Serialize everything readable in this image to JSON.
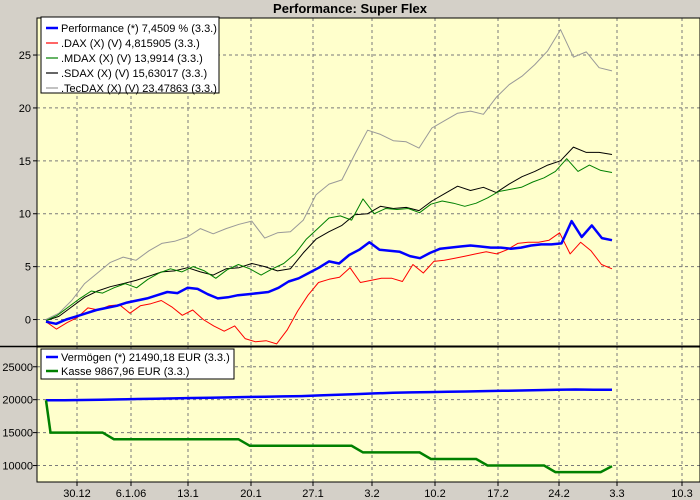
{
  "chart_data": [
    {
      "type": "line",
      "title": "Performance: Super Flex",
      "xlabel": "",
      "ylabel": "",
      "ylim": [
        -2.5,
        28.5
      ],
      "yticks": [
        0,
        5,
        10,
        15,
        20,
        25
      ],
      "x_tick_labels": [
        "30.12",
        "6.1.06",
        "13.1",
        "20.1",
        "27.1",
        "3.2",
        "10.2",
        "17.2",
        "24.2",
        "3.3",
        "10.3"
      ],
      "grid": true,
      "legend_position": "top-left",
      "series": [
        {
          "name": "Performance (*) 7,4509 % (3.3.)",
          "color": "#0000ff",
          "values": [
            -0.2,
            -0.4,
            0.0,
            0.3,
            0.6,
            0.9,
            1.1,
            1.3,
            1.6,
            1.8,
            2.0,
            2.3,
            2.6,
            2.5,
            3.0,
            2.9,
            2.4,
            2.0,
            2.1,
            2.3,
            2.4,
            2.5,
            2.6,
            3.0,
            3.6,
            3.9,
            4.4,
            4.9,
            5.5,
            5.3,
            6.1,
            6.6,
            7.3,
            6.6,
            6.5,
            6.4,
            6.0,
            5.8,
            6.3,
            6.7,
            6.8,
            6.9,
            7.0,
            6.9,
            6.8,
            6.8,
            6.7,
            6.8,
            7.0,
            7.1,
            7.1,
            7.2,
            9.3,
            7.8,
            8.9,
            7.7,
            7.5
          ]
        },
        {
          "name": ".DAX (X) (V) 4,815905 (3.3.)",
          "color": "#ff0000",
          "values": [
            -0.2,
            -0.9,
            -0.3,
            0.2,
            1.1,
            0.9,
            1.3,
            1.4,
            0.6,
            1.3,
            1.5,
            1.8,
            1.2,
            0.4,
            0.9,
            0.0,
            -0.6,
            -1.1,
            -0.6,
            -1.8,
            -2.1,
            -2.0,
            -2.3,
            -1.0,
            0.8,
            2.3,
            3.5,
            3.8,
            4.0,
            4.9,
            3.5,
            3.7,
            3.9,
            3.9,
            3.6,
            5.2,
            4.4,
            5.5,
            5.6,
            5.8,
            6.0,
            6.2,
            6.4,
            6.2,
            6.6,
            7.2,
            7.3,
            7.3,
            7.5,
            8.2,
            6.2,
            7.3,
            6.5,
            5.2,
            4.8
          ]
        },
        {
          "name": ".MDAX (X) (V) 13,9914 (3.3.)",
          "color": "#008000",
          "values": [
            -0.1,
            0.4,
            1.2,
            2.0,
            2.7,
            2.5,
            3.0,
            3.4,
            3.0,
            3.8,
            4.4,
            4.8,
            4.5,
            5.0,
            4.6,
            3.9,
            4.7,
            5.2,
            4.8,
            4.2,
            4.8,
            5.3,
            6.2,
            7.6,
            8.6,
            9.6,
            9.8,
            9.4,
            11.4,
            10.0,
            10.5,
            10.4,
            10.5,
            10.1,
            10.9,
            11.2,
            11.0,
            10.7,
            11.0,
            11.5,
            12.1,
            12.3,
            12.5,
            13.0,
            13.4,
            14.0,
            15.2,
            14.0,
            14.6,
            14.1,
            13.9
          ]
        },
        {
          "name": ".SDAX (X) (V) 15,63017 (3.3.)",
          "color": "#000000",
          "values": [
            -0.1,
            0.3,
            1.2,
            2.1,
            2.7,
            3.1,
            3.4,
            3.7,
            4.1,
            4.5,
            4.6,
            4.9,
            4.5,
            4.2,
            4.8,
            4.9,
            5.3,
            5.0,
            4.6,
            4.8,
            6.3,
            7.6,
            8.3,
            8.9,
            9.9,
            10.0,
            10.7,
            10.5,
            10.6,
            10.3,
            11.2,
            11.9,
            12.6,
            12.2,
            12.5,
            12.0,
            12.8,
            13.5,
            14.0,
            14.6,
            15.0,
            16.3,
            15.8,
            15.8,
            15.6
          ]
        },
        {
          "name": ".TecDAX (X) (V) 23,47863 (3.3.)",
          "color": "#999999",
          "values": [
            0.0,
            0.6,
            1.8,
            3.4,
            4.4,
            5.4,
            5.9,
            5.6,
            6.5,
            7.2,
            7.4,
            7.8,
            8.6,
            8.1,
            8.6,
            9.0,
            9.3,
            7.7,
            8.2,
            8.3,
            9.4,
            11.8,
            12.8,
            13.2,
            15.6,
            17.9,
            17.5,
            16.9,
            16.8,
            16.2,
            18.1,
            18.8,
            19.5,
            19.7,
            19.4,
            21.0,
            22.2,
            23.0,
            24.1,
            25.4,
            27.4,
            24.8,
            25.3,
            23.8,
            23.5
          ]
        }
      ]
    },
    {
      "type": "line",
      "title": "",
      "xlabel": "",
      "ylabel": "",
      "ylim": [
        7500,
        28000
      ],
      "yticks": [
        10000,
        15000,
        20000,
        25000
      ],
      "grid": true,
      "legend_position": "top-left",
      "series": [
        {
          "name": "Vermögen (*) 21490,18 EUR (3.3.)",
          "color": "#0000ff",
          "values": [
            19900,
            19900,
            19950,
            20000,
            20050,
            20100,
            20150,
            20200,
            20250,
            20300,
            20350,
            20400,
            20450,
            20500,
            20550,
            20650,
            20750,
            20850,
            20950,
            21050,
            21100,
            21150,
            21200,
            21250,
            21300,
            21350,
            21400,
            21450,
            21500,
            21550,
            21500,
            21500
          ]
        },
        {
          "name": "Kasse 9867,96 EUR (3.3.)",
          "color": "#008000",
          "steps": [
            [
              0,
              19900
            ],
            [
              0.4,
              15000
            ],
            [
              5,
              15000
            ],
            [
              6,
              14000
            ],
            [
              17,
              14000
            ],
            [
              18,
              13000
            ],
            [
              27,
              13000
            ],
            [
              28,
              12000
            ],
            [
              33,
              12000
            ],
            [
              34,
              11000
            ],
            [
              38,
              11000
            ],
            [
              39,
              10000
            ],
            [
              44,
              10000
            ],
            [
              45,
              9000
            ],
            [
              49,
              9000
            ],
            [
              50,
              9900
            ]
          ]
        }
      ]
    }
  ]
}
